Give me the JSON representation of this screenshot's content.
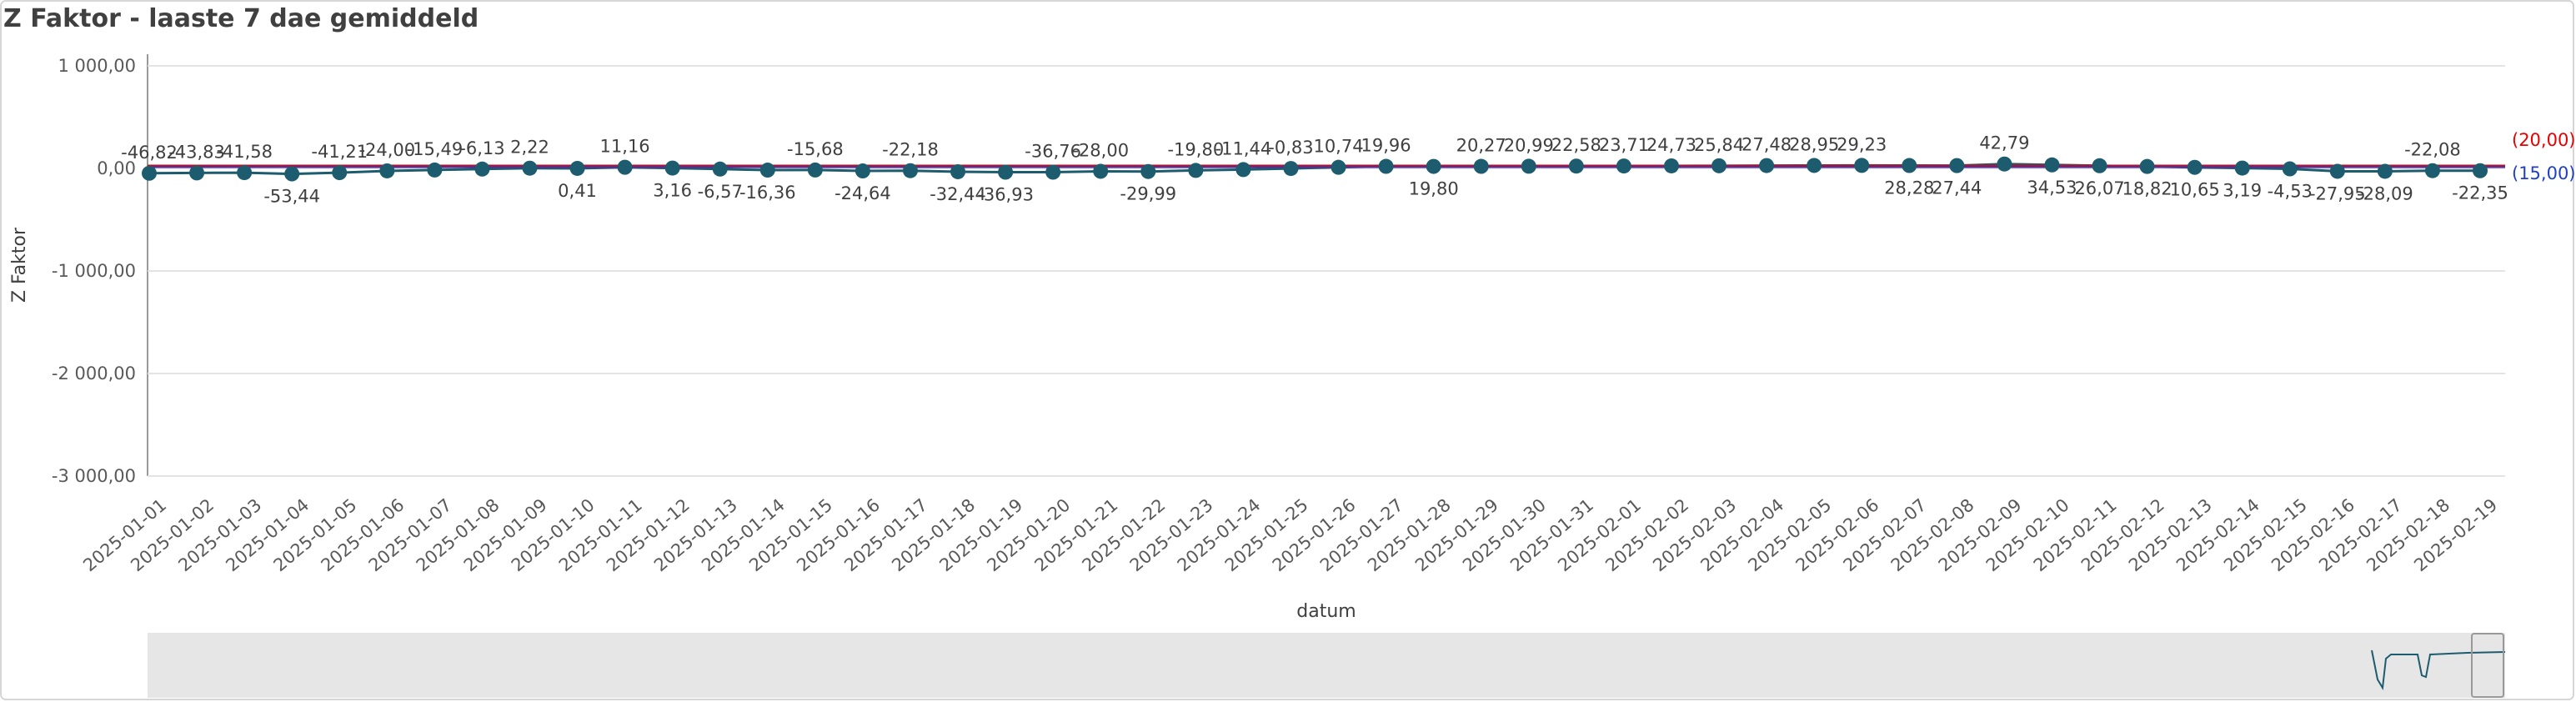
{
  "chart_data": {
    "type": "line",
    "title": "Z Faktor - laaste 7 dae gemiddeld",
    "x_label": "datum",
    "y_label": "Z Faktor",
    "categories": [
      "2025-01-01",
      "2025-01-02",
      "2025-01-03",
      "2025-01-04",
      "2025-01-05",
      "2025-01-06",
      "2025-01-07",
      "2025-01-08",
      "2025-01-09",
      "2025-01-10",
      "2025-01-11",
      "2025-01-12",
      "2025-01-13",
      "2025-01-14",
      "2025-01-15",
      "2025-01-16",
      "2025-01-17",
      "2025-01-18",
      "2025-01-19",
      "2025-01-20",
      "2025-01-21",
      "2025-01-22",
      "2025-01-23",
      "2025-01-24",
      "2025-01-25",
      "2025-01-26",
      "2025-01-27",
      "2025-01-28",
      "2025-01-29",
      "2025-01-30",
      "2025-01-31",
      "2025-02-01",
      "2025-02-02",
      "2025-02-03",
      "2025-02-04",
      "2025-02-05",
      "2025-02-06",
      "2025-02-07",
      "2025-02-08",
      "2025-02-09",
      "2025-02-10",
      "2025-02-11",
      "2025-02-12",
      "2025-02-13",
      "2025-02-14",
      "2025-02-15",
      "2025-02-16",
      "2025-02-17",
      "2025-02-18",
      "2025-02-19"
    ],
    "series": [
      {
        "name": "Z Faktor",
        "color": "#1d5c6e",
        "values": [
          -46.82,
          -43.83,
          -41.58,
          -53.44,
          -41.21,
          -24.0,
          -15.49,
          -6.13,
          2.22,
          0.41,
          11.16,
          3.16,
          -6.57,
          -16.36,
          -15.68,
          -24.64,
          -22.18,
          -32.44,
          -36.93,
          -36.76,
          -28.0,
          -29.99,
          -19.8,
          -11.44,
          -0.83,
          10.74,
          19.96,
          19.8,
          20.27,
          20.99,
          22.58,
          23.71,
          24.73,
          25.84,
          27.48,
          28.95,
          29.23,
          28.28,
          27.44,
          42.79,
          34.53,
          26.07,
          18.82,
          10.65,
          3.19,
          -4.53,
          -27.95,
          -28.09,
          -22.08,
          -22.35
        ],
        "value_labels": [
          "-46,82",
          "-43,83",
          "-41,58",
          "-53,44",
          "-41,21",
          "-24,00",
          "-15,49",
          "-6,13",
          "2,22",
          "0,41",
          "11,16",
          "3,16",
          "-6,57",
          "-16,36",
          "-15,68",
          "-24,64",
          "-22,18",
          "-32,44",
          "-36,93",
          "-36,76",
          "-28,00",
          "-29,99",
          "-19,80",
          "-11,44",
          "-0,83",
          "10,74",
          "19,96",
          "19,80",
          "20,27",
          "20,99",
          "22,58",
          "23,71",
          "24,73",
          "25,84",
          "27,48",
          "28,95",
          "29,23",
          "28,28",
          "27,44",
          "42,79",
          "34,53",
          "26,07",
          "18,82",
          "10,65",
          "3,19",
          "-4,53",
          "-27,95",
          "-28,09",
          "-22,08",
          "-22,35"
        ]
      }
    ],
    "reference_lines": [
      {
        "value": 20,
        "label": "(20,00)",
        "color": "#e60000"
      },
      {
        "value": 15,
        "label": "(15,00)",
        "color": "#1f3fc4"
      }
    ],
    "ylim": [
      -3000,
      1000
    ],
    "yticks": [
      {
        "value": 1000,
        "label": "1 000,00"
      },
      {
        "value": 0,
        "label": "0,00"
      },
      {
        "value": -1000,
        "label": "-1 000,00"
      },
      {
        "value": -2000,
        "label": "-2 000,00"
      },
      {
        "value": -3000,
        "label": "-3 000,00"
      }
    ],
    "grid": true
  }
}
